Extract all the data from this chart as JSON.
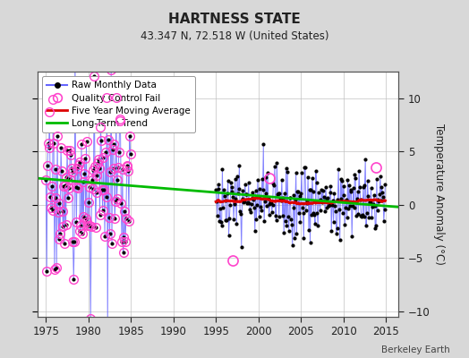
{
  "title": "HARTNESS STATE",
  "subtitle": "43.347 N, 72.518 W (United States)",
  "ylabel": "Temperature Anomaly (°C)",
  "credit": "Berkeley Earth",
  "xlim": [
    1974.0,
    2016.5
  ],
  "ylim": [
    -10.5,
    12.5
  ],
  "yticks": [
    -10,
    -5,
    0,
    5,
    10
  ],
  "xticks": [
    1975,
    1980,
    1985,
    1990,
    1995,
    2000,
    2005,
    2010,
    2015
  ],
  "bg_color": "#d8d8d8",
  "plot_bg": "#ffffff",
  "raw_line_color": "#6666ff",
  "raw_dot_color": "#000000",
  "qc_color": "#ff44cc",
  "mavg_color": "#dd0000",
  "trend_color": "#00bb00",
  "trend_x": [
    1974.0,
    2016.5
  ],
  "trend_y": [
    2.5,
    -0.2
  ],
  "figsize": [
    5.24,
    4.0
  ],
  "dpi": 100
}
